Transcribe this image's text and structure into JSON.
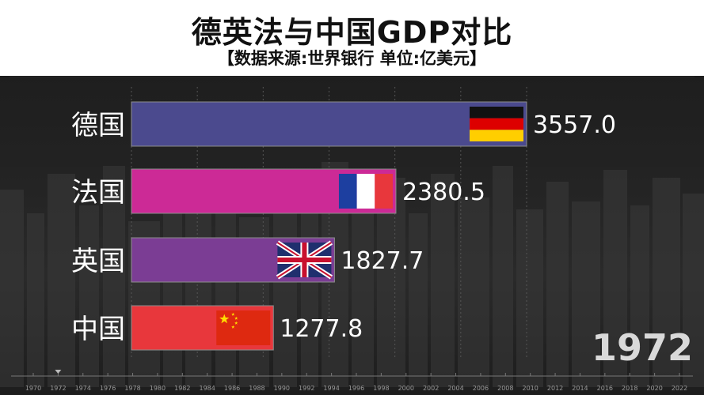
{
  "title": "德英法与中国GDP对比",
  "subtitle": "【数据来源:世界银行 单位:亿美元】",
  "year": "1972",
  "chart_data": {
    "type": "bar",
    "orientation": "horizontal",
    "xlim": [
      0,
      3557.0
    ],
    "bars": [
      {
        "label": "德国",
        "value": 3557.0,
        "value_label": "3557.0",
        "color": "#4b4a8e",
        "flag": "germany"
      },
      {
        "label": "法国",
        "value": 2380.5,
        "value_label": "2380.5",
        "color": "#cc2a96",
        "flag": "france"
      },
      {
        "label": "英国",
        "value": 1827.7,
        "value_label": "1827.7",
        "color": "#7b3d94",
        "flag": "uk"
      },
      {
        "label": "中国",
        "value": 1277.8,
        "value_label": "1277.8",
        "color": "#e8373c",
        "flag": "china"
      }
    ],
    "timeline": {
      "ticks": [
        "1970",
        "1972",
        "1974",
        "1976",
        "1978",
        "1980",
        "1982",
        "1984",
        "1986",
        "1988",
        "1990",
        "1992",
        "1994",
        "1996",
        "1998",
        "2000",
        "2002",
        "2004",
        "2006",
        "2008",
        "2010",
        "2012",
        "2014",
        "2016",
        "2018",
        "2020",
        "2022"
      ],
      "current": "1972"
    }
  }
}
